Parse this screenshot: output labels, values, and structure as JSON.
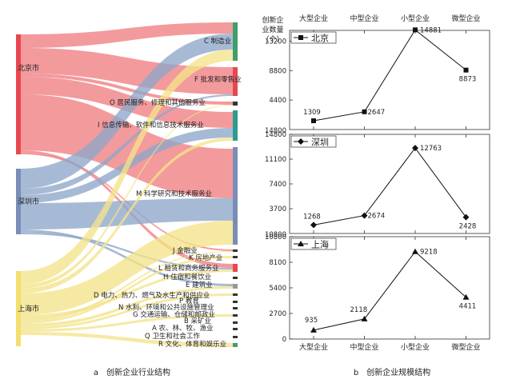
{
  "colors": {
    "beijing": "#e8474f",
    "shenzhen": "#7a8db6",
    "shanghai": "#f2df6e",
    "manufacturing": "#3f9f6b",
    "wholesale": "#e8474f",
    "infotech": "#2a9d8f",
    "science": "#7a8db6",
    "flow_beijing": "#ef7d82",
    "flow_shenzhen": "#8ea7c9",
    "flow_shanghai": "#f4e38a"
  },
  "captions": {
    "a": "a　创新企业行业结构",
    "b": "b　创新企业规模结构"
  },
  "sankey": {
    "cities": [
      {
        "key": "beijing",
        "label": "北京市"
      },
      {
        "key": "shenzhen",
        "label": "深圳市"
      },
      {
        "key": "shanghai",
        "label": "上海市"
      }
    ],
    "industries": [
      {
        "label": "C  制造业",
        "color": "#3f9f6b"
      },
      {
        "label": "F  批发和零售业",
        "color": "#e8474f"
      },
      {
        "label": "O  居民服务、修理和其他服务业",
        "color": "#222222"
      },
      {
        "label": "I  信息传输、软件和信息技术服务业",
        "color": "#2a9d8f"
      },
      {
        "label": "M  科学研究和技术服务业",
        "color": "#7a8db6"
      },
      {
        "label": "J  金融业",
        "color": "#222222"
      },
      {
        "label": "K  房地产业",
        "color": "#222222"
      },
      {
        "label": "L  租赁和商务服务业",
        "color": "#e8474f"
      },
      {
        "label": "H  住宿和餐饮业",
        "color": "#222222"
      },
      {
        "label": "E  建筑业",
        "color": "#888888"
      },
      {
        "label": "D  电力、热力、燃气及水生产和供应业",
        "color": "#222222"
      },
      {
        "label": "P  教育",
        "color": "#222222"
      },
      {
        "label": "N  水利、环境和公共设施管理业",
        "color": "#222222"
      },
      {
        "label": "G  交通运输、仓储和邮政业",
        "color": "#222222"
      },
      {
        "label": "B  采矿业",
        "color": "#222222"
      },
      {
        "label": "A  农、林、牧、渔业",
        "color": "#222222"
      },
      {
        "label": "Q  卫生和社会工作",
        "color": "#222222"
      },
      {
        "label": "R  文化、体育和娱乐业",
        "color": "#3f9f6b"
      }
    ]
  },
  "chart_data": {
    "type": "line",
    "ylabel": "创新企业数量（个）",
    "categories": [
      "大型企业",
      "中型企业",
      "小型企业",
      "微型企业"
    ],
    "series": [
      {
        "name": "北京",
        "marker": "square",
        "values": [
          1309,
          2647,
          14881,
          8873
        ],
        "ylim": [
          0,
          14800
        ],
        "ticks": [
          "4400",
          "8800",
          "13200"
        ]
      },
      {
        "name": "深圳",
        "marker": "diamond",
        "values": [
          1268,
          2674,
          12763,
          2428
        ],
        "ylim": [
          0,
          14800
        ],
        "ticks": [
          "3700",
          "7400",
          "11100",
          "14800"
        ]
      },
      {
        "name": "上海",
        "marker": "triangle",
        "values": [
          935,
          2118,
          9218,
          4411
        ],
        "ylim": [
          0,
          10800
        ],
        "ticks": [
          "0",
          "2700",
          "5400",
          "8100",
          "10800"
        ]
      }
    ]
  }
}
